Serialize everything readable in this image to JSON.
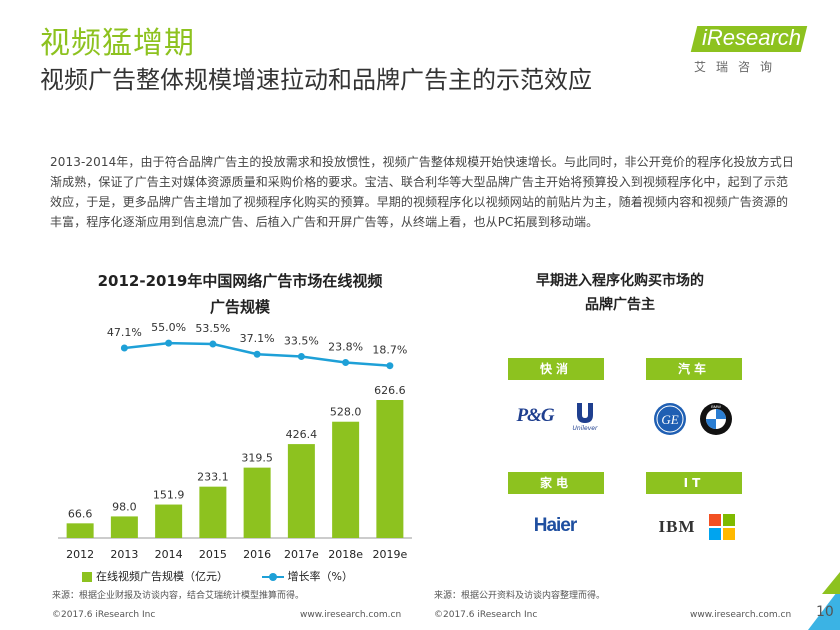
{
  "header": {
    "kicker": "视频猛增期",
    "title": "视频广告整体规模增速拉动和品牌广告主的示范效应",
    "logo_text": "iResearch",
    "logo_sub": "艾瑞咨询"
  },
  "intro": "2013-2014年，由于符合品牌广告主的投放需求和投放惯性，视频广告整体规模开始快速增长。与此同时，非公开竞价的程序化投放方式日渐成熟，保证了广告主对媒体资源质量和采购价格的要求。宝洁、联合利华等大型品牌广告主开始将预算投入到视频程序化中，起到了示范效应，于是，更多品牌广告主增加了视频程序化购买的预算。早期的视频程序化以视频网站的前贴片为主，随着视频内容和视频广告资源的丰富，程序化逐渐应用到信息流广告、后植入广告和开屏广告等，从终端上看，也从PC拓展到移动端。",
  "chart_data": {
    "type": "bar",
    "title_line1": "2012-2019年中国网络广告市场在线视频",
    "title_line2": "广告规模",
    "categories": [
      "2012",
      "2013",
      "2014",
      "2015",
      "2016",
      "2017e",
      "2018e",
      "2019e"
    ],
    "series": [
      {
        "name": "在线视频广告规模（亿元）",
        "type": "bar",
        "values": [
          66.6,
          98.0,
          151.9,
          233.1,
          319.5,
          426.4,
          528.0,
          626.6
        ],
        "labels": [
          "66.6",
          "98.0",
          "151.9",
          "233.1",
          "319.5",
          "426.4",
          "528.0",
          "626.6"
        ]
      },
      {
        "name": "增长率（%）",
        "type": "line",
        "values": [
          null,
          47.1,
          55.0,
          53.5,
          37.1,
          33.5,
          23.8,
          18.7
        ],
        "labels": [
          "",
          "47.1%",
          "55.0%",
          "53.5%",
          "37.1%",
          "33.5%",
          "23.8%",
          "18.7%"
        ]
      }
    ],
    "colors": {
      "bar": "#8dc21f",
      "line": "#1ea0d7"
    },
    "source": "来源：根据企业财报及访谈内容，结合艾瑞统计模型推算而得。"
  },
  "right_panel": {
    "title_line1": "早期进入程序化购买市场的",
    "title_line2": "品牌广告主",
    "categories": [
      {
        "label": "快消",
        "brands": [
          "P&G",
          "Unilever"
        ]
      },
      {
        "label": "汽车",
        "brands": [
          "GE",
          "BMW"
        ]
      },
      {
        "label": "家电",
        "brands": [
          "Haier"
        ]
      },
      {
        "label": "IT",
        "brands": [
          "IBM",
          "Microsoft"
        ]
      }
    ],
    "source": "来源：根据公开资料及访谈内容整理而得。"
  },
  "footer": {
    "left_copyright": "©2017.6 iResearch Inc",
    "left_url": "www.iresearch.com.cn",
    "right_copyright": "©2017.6 iResearch Inc",
    "right_url": "www.iresearch.com.cn",
    "page_number": "10"
  },
  "colors": {
    "accent": "#8dc21f",
    "line": "#1ea0d7"
  }
}
